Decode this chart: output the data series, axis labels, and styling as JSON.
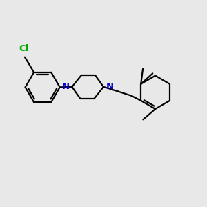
{
  "background_color": "#e8e8e8",
  "bond_color": "#000000",
  "nitrogen_color": "#0000cc",
  "chlorine_color": "#00aa00",
  "line_width": 1.6,
  "figsize": [
    3.0,
    3.0
  ],
  "dpi": 100,
  "xlim": [
    0,
    10
  ],
  "ylim": [
    -1,
    9
  ]
}
